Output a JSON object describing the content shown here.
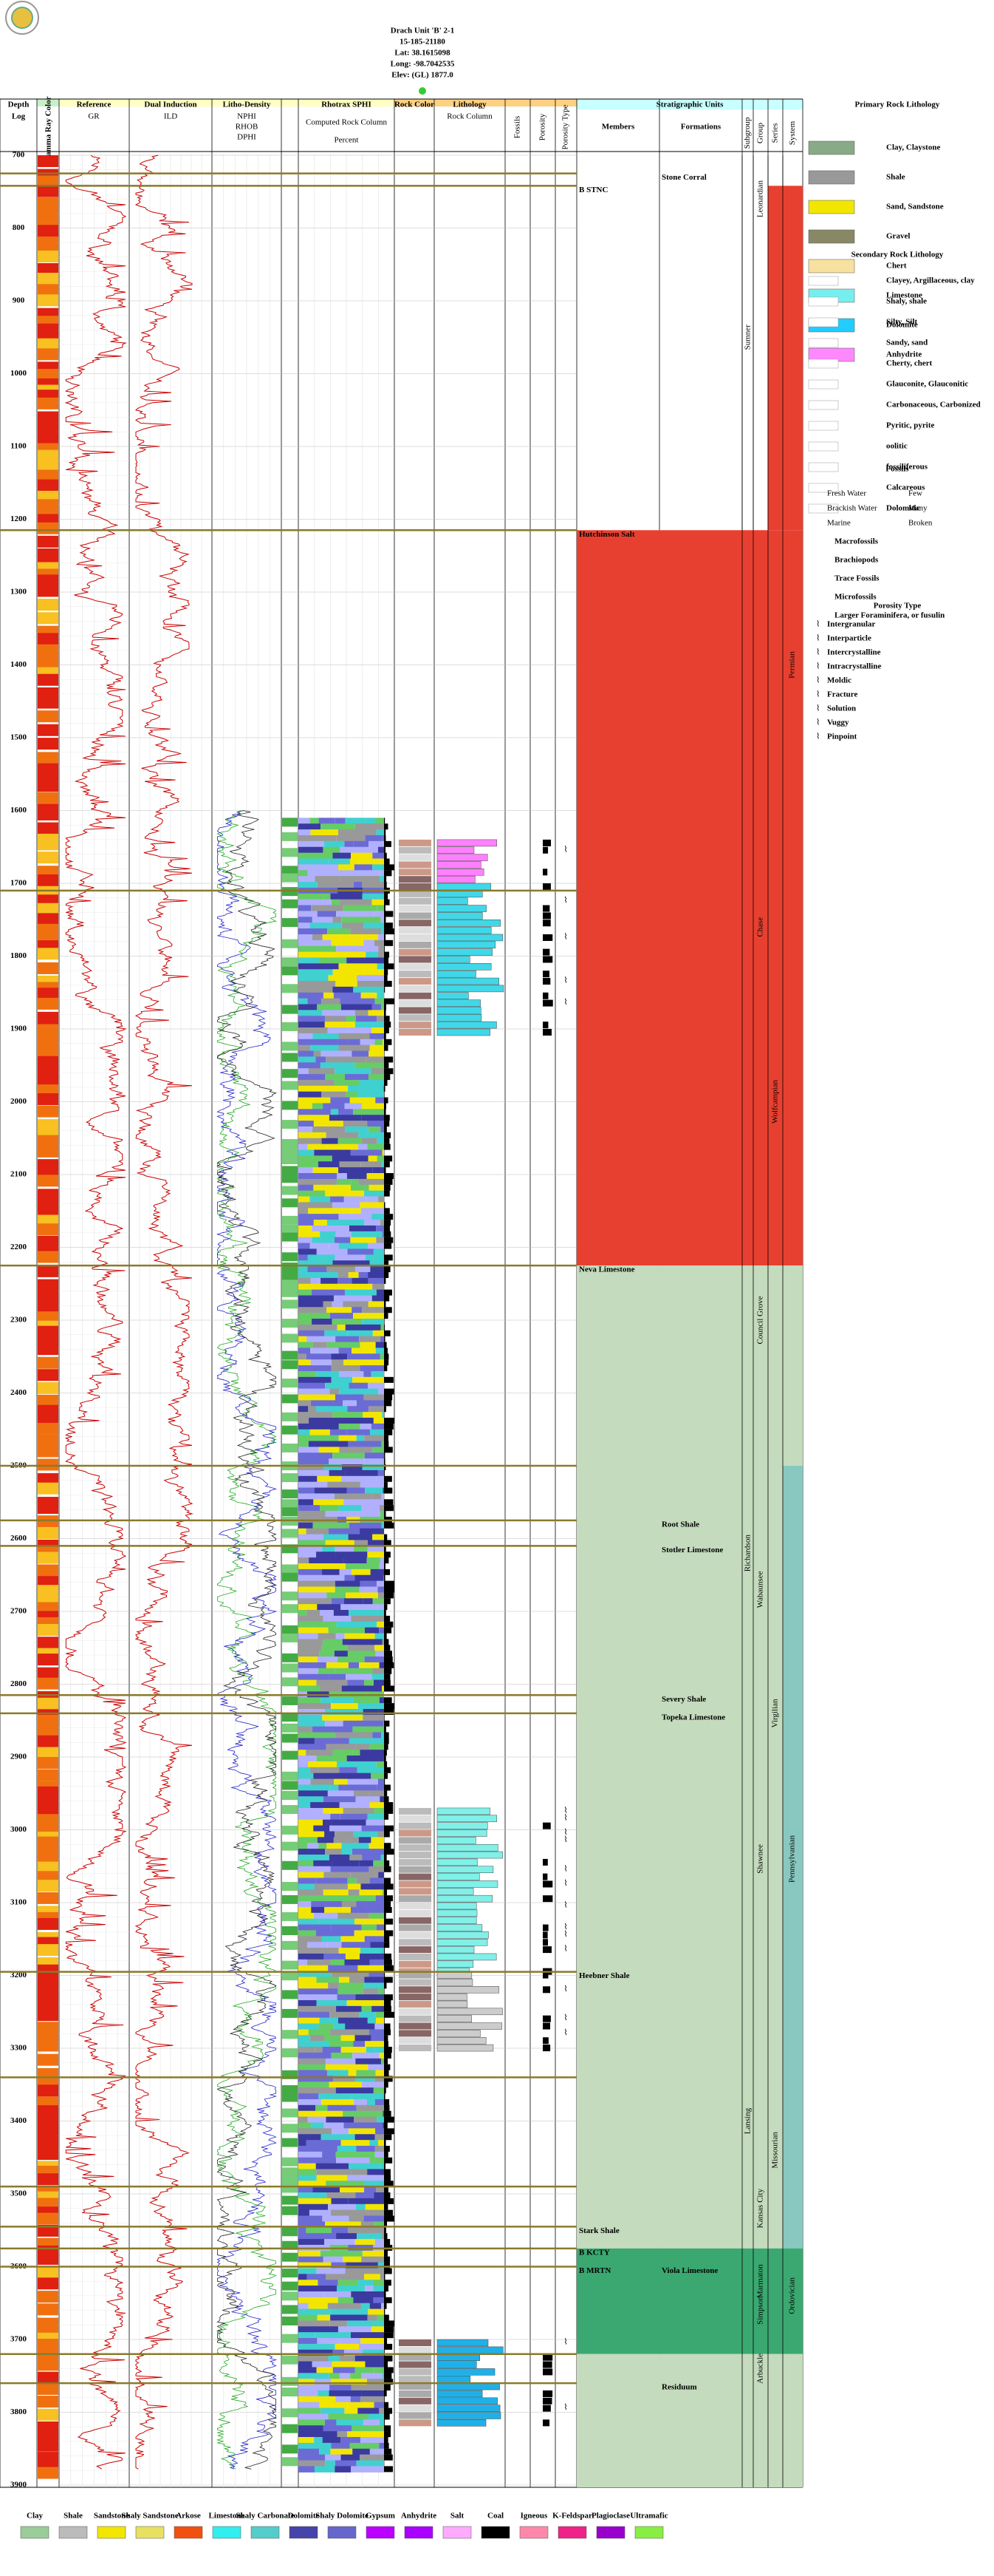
{
  "header": {
    "title": "Drach Unit 'B' 2-1",
    "api": "15-185-21180",
    "lat": "Lat: 38.1615098",
    "long": "Long: -98.7042535",
    "elev": "Elev: (GL) 1877.0"
  },
  "columns": {
    "depth": "Depth",
    "log": "Log",
    "gr_color": "Gamma Ray Color",
    "reference": "Reference",
    "gr": "GR",
    "dual": "Dual Induction",
    "ild": "ILD",
    "litho": "Litho-Density",
    "nphi": "NPHI",
    "rhob": "RHOB",
    "dphi": "DPHI",
    "rhotrax": "Rhotrax SPHI",
    "computed": "Computed Rock Column",
    "percent": "Percent",
    "rock_color": "Rock Color",
    "lithology": "Lithology",
    "rock_column": "Rock Column",
    "fossils": "Fossils",
    "porosity": "Porosity",
    "porosity_type": "Porosity Type",
    "strat": "Stratigraphic Units",
    "members": "Members",
    "formations": "Formations",
    "subgroup": "Subgroup",
    "group": "Group",
    "series": "Series",
    "system": "System"
  },
  "depth_ticks": [
    "700",
    "800",
    "900",
    "1000",
    "1100",
    "1200",
    "1300",
    "1400",
    "1500",
    "1600",
    "1700",
    "1800",
    "1900",
    "2000",
    "2100",
    "2200",
    "2300",
    "2400",
    "2500",
    "2600",
    "2700",
    "2800",
    "2900",
    "3000",
    "3100",
    "3200",
    "3300",
    "3400",
    "3500",
    "3600",
    "3700",
    "3800",
    "3900"
  ],
  "units": [
    "Stone Corral",
    "B STNC",
    "Hutchinson Salt",
    "Neva Limestone",
    "Root Shale",
    "Stotler Limestone",
    "Severy Shale",
    "Topeka Limestone",
    "Heebner Shale",
    "Stark Shale",
    "B KCTY",
    "B MRTN",
    "Viola Limestone",
    "Residuum"
  ],
  "groups": [
    "Sumner",
    "Leonardian",
    "Chase",
    "Wolfcampian",
    "Council Grove",
    "Richardson",
    "Wabaunsee",
    "Virgilian",
    "Shawnee",
    "Lansing",
    "Missourian",
    "Kansas City",
    "Marmaton",
    "Simpson",
    "Arbuckle",
    "Permian",
    "Pennsylvanian",
    "Ordovician"
  ],
  "legend": {
    "primary_title": "Primary Rock Lithology",
    "primary": [
      "Clay, Claystone",
      "Shale",
      "Sand, Sandstone",
      "Gravel",
      "Chert",
      "Limestone",
      "Dolomite",
      "Anhydrite"
    ],
    "secondary_title": "Secondary Rock Lithology",
    "secondary": [
      "Clayey, Argillaceous, clay",
      "Shaly, shale",
      "Silty, Silt",
      "Sandy, sand",
      "Cherty, chert",
      "Glauconite, Glauconitic",
      "Carbonaceous, Carbonized",
      "Pyritic, pyrite",
      "oolitic",
      "fossiliferous",
      "Calcareous",
      "Dolomitic"
    ],
    "fossils_title": "Fossils",
    "water": [
      "Fresh Water",
      "Brackish Water",
      "Marine"
    ],
    "abundance": [
      "Few",
      "Many",
      "Broken"
    ],
    "fossils": [
      "Macrofossils",
      "Brachiopods",
      "Trace Fossils",
      "Microfossils",
      "Larger Foraminifera, or fusulin"
    ],
    "porosity_title": "Porosity Type",
    "porosity": [
      "Intergranular",
      "Interparticle",
      "Intercrystalline",
      "Intracrystalline",
      "Moldic",
      "Fracture",
      "Solution",
      "Vuggy",
      "Pinpoint"
    ]
  },
  "bottom_legend": [
    "Clay",
    "Shale",
    "Sandstone",
    "Shaly Sandstone",
    "Arkose",
    "Limestone",
    "Shaly Carbonate",
    "Dolomite",
    "Shaly Dolomite",
    "Gypsum",
    "Anhydrite",
    "Salt",
    "Coal",
    "Igneous",
    "K-Feldspar",
    "Plagioclase",
    "Ultramafic"
  ]
}
